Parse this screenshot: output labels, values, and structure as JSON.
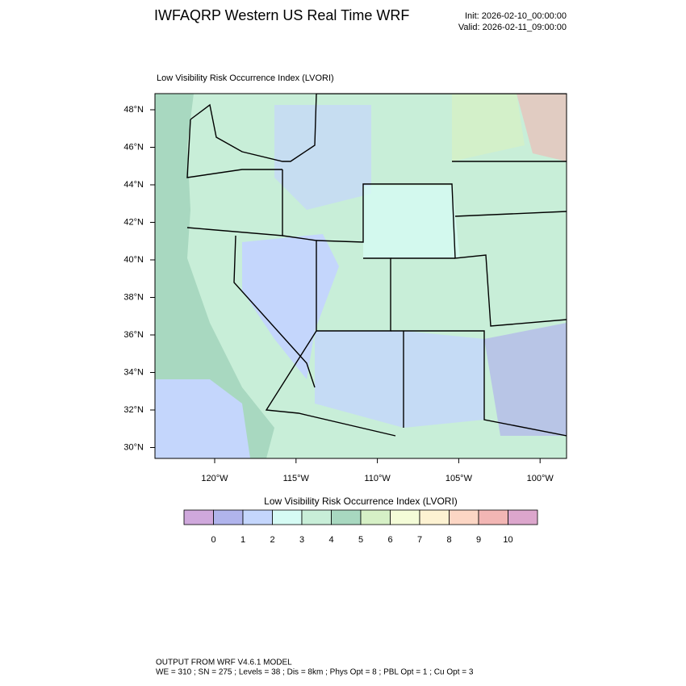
{
  "header": {
    "title": "IWFAQRP Western US Real Time WRF",
    "init": "Init: 2026-02-10_00:00:00",
    "valid": "Valid: 2026-02-11_09:00:00"
  },
  "map": {
    "subtitle": "Low Visibility Risk Occurrence Index   (LVORI)",
    "lat_labels": [
      "48°N",
      "46°N",
      "44°N",
      "42°N",
      "40°N",
      "38°N",
      "36°N",
      "34°N",
      "32°N",
      "30°N"
    ],
    "lon_labels": [
      "120°W",
      "115°W",
      "110°W",
      "105°W",
      "100°W"
    ]
  },
  "colorbar": {
    "title": "Low Visibility Risk Occurrence Index  (LVORI)",
    "colors": [
      "#cfa8dc",
      "#b0b4ec",
      "#c4d6fc",
      "#d6fbf4",
      "#c8eed8",
      "#a8d8c0",
      "#d6f0c6",
      "#f4fcd8",
      "#fdf2d2",
      "#fcd6c4",
      "#f2b6b4",
      "#dca6cc"
    ],
    "labels": [
      0,
      1,
      2,
      3,
      4,
      5,
      6,
      7,
      8,
      9,
      10
    ]
  },
  "footer": {
    "line1": "OUTPUT FROM WRF V4.6.1 MODEL",
    "line2": "WE = 310 ; SN = 275 ; Levels = 38 ; Dis = 8km ; Phys Opt = 8 ; PBL Opt = 1 ; Cu Opt = 3"
  }
}
